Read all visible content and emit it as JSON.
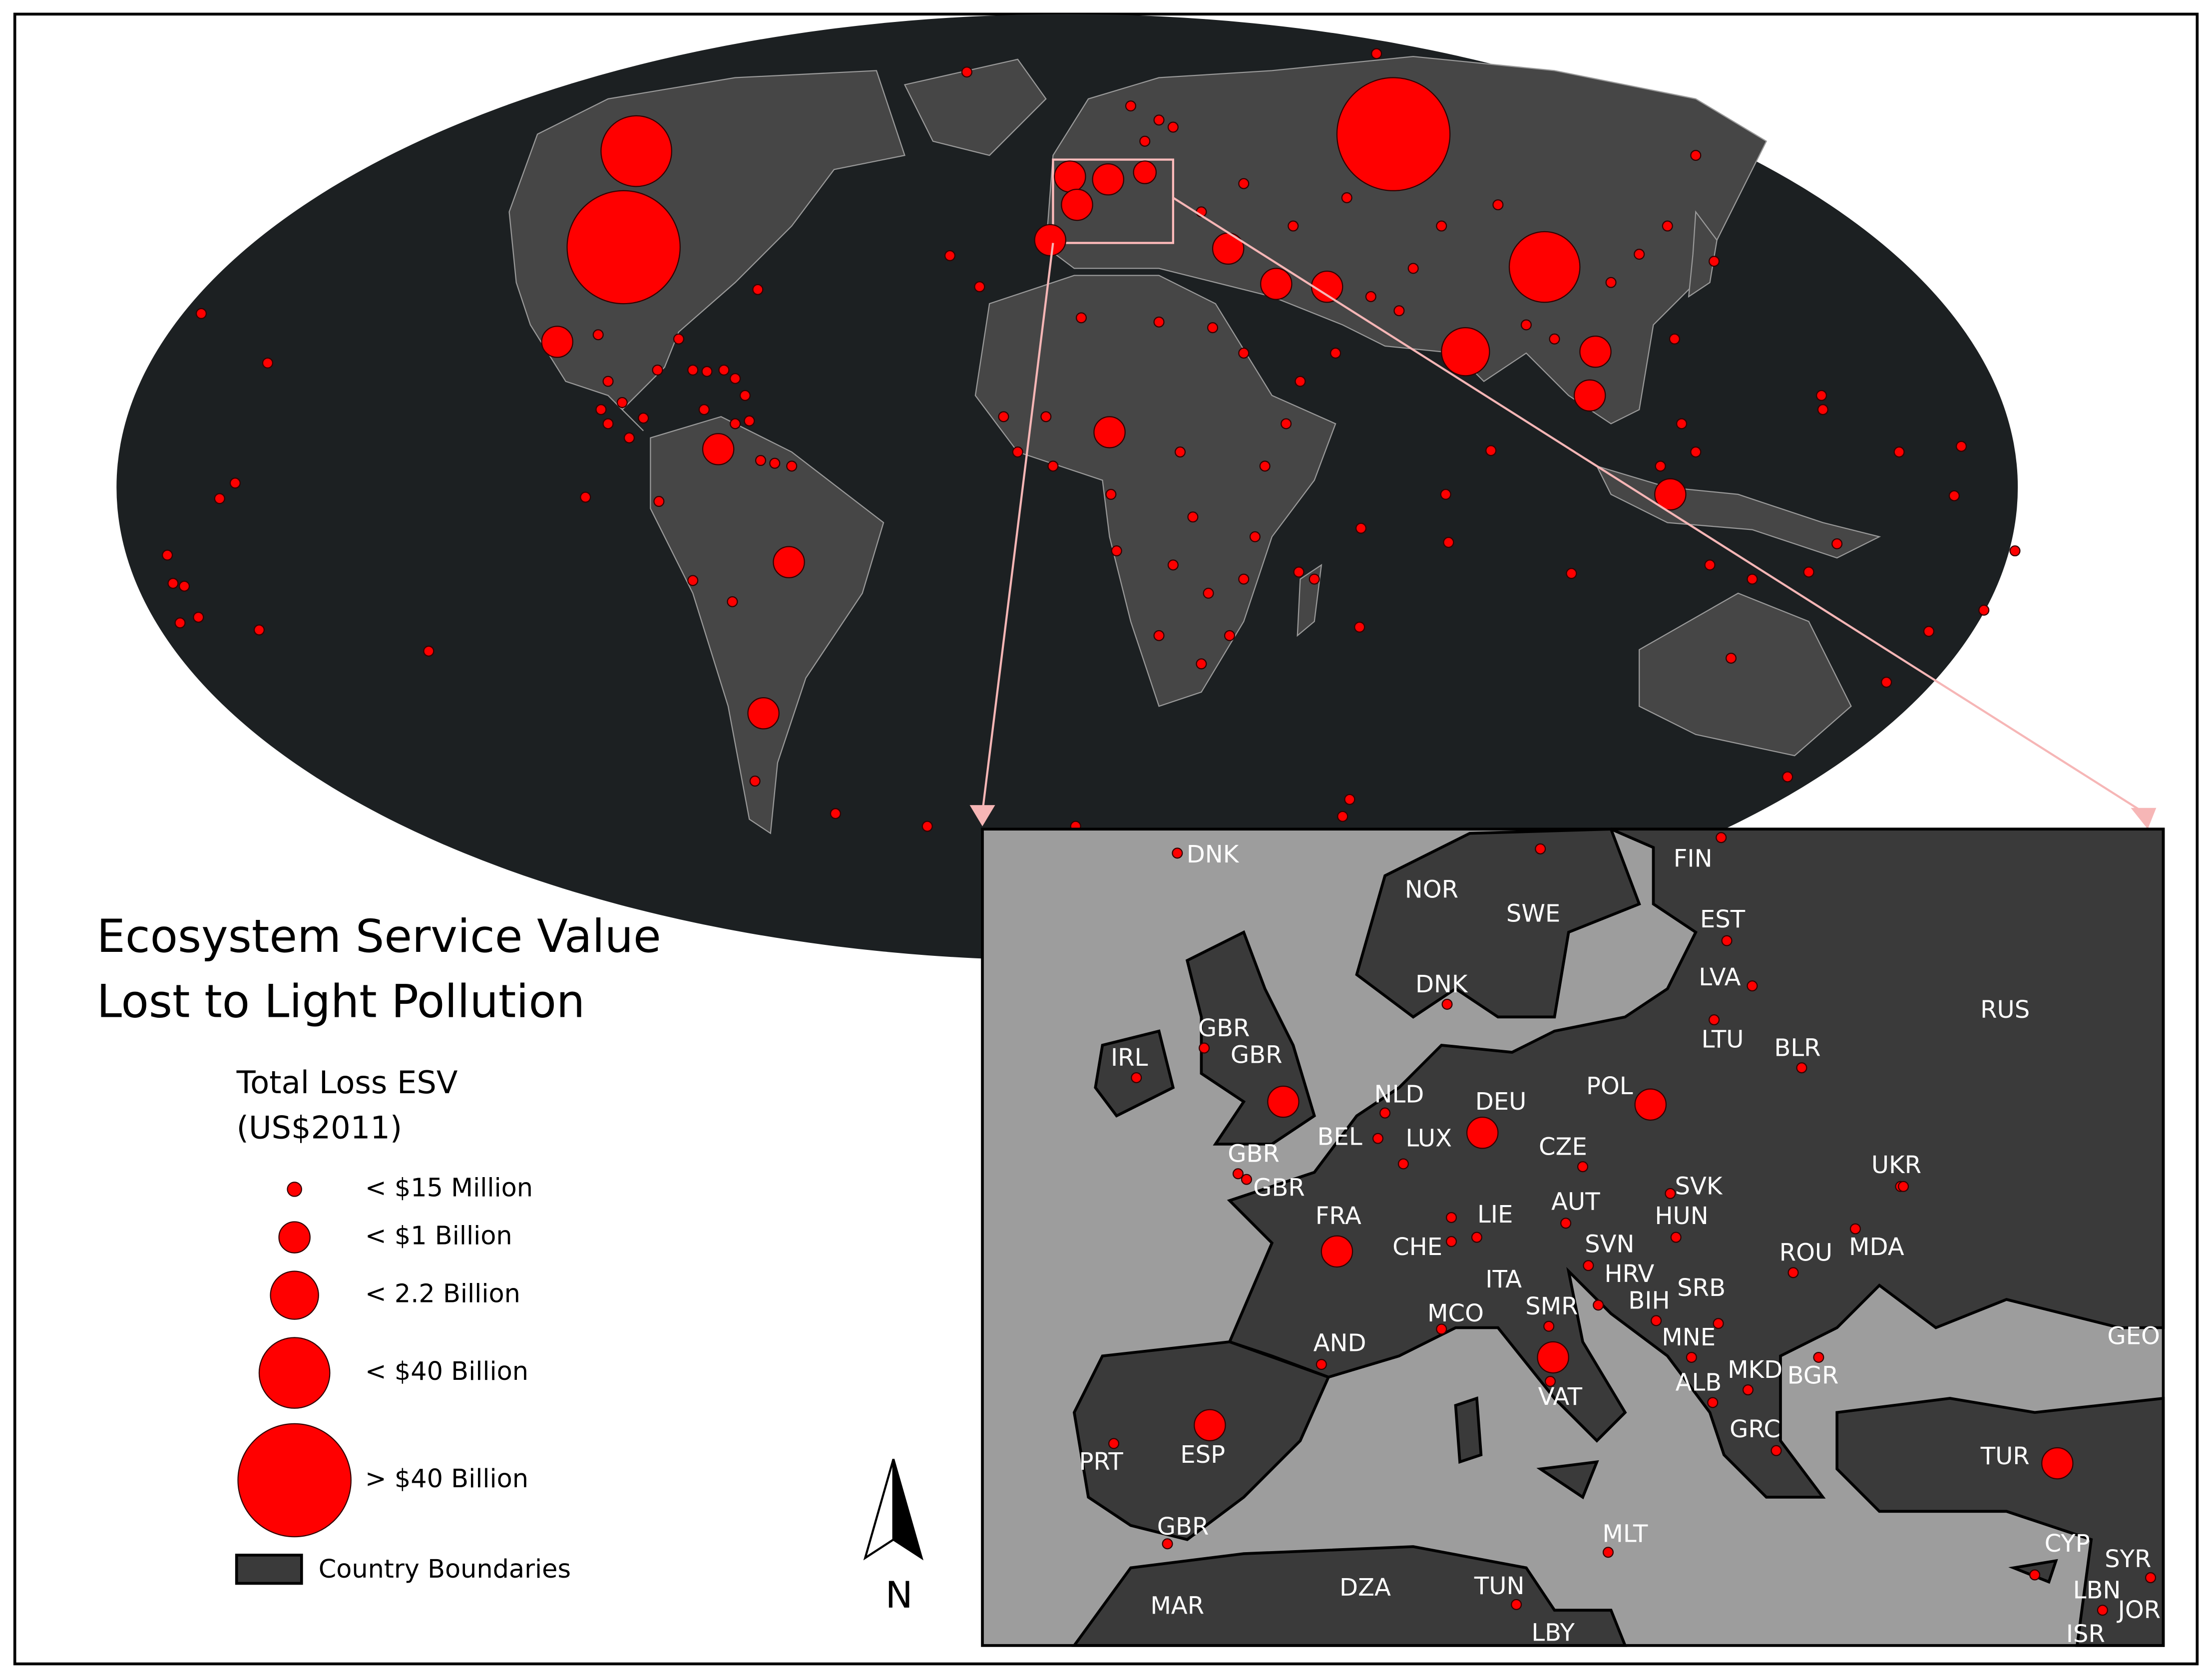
{
  "title_lines": [
    "Ecosystem Service Value",
    "Lost to Light Pollution"
  ],
  "legend": {
    "title": "Total Loss ESV",
    "subtitle": "(US$2011)",
    "size_classes": [
      "< $15 Million",
      "< $1 Billion",
      "< 2.2 Billion",
      "< $40 Billion",
      "> $40 Billion"
    ],
    "boundaries": "Country Boundaries"
  },
  "north_arrow": "N",
  "inset_labels": [
    "DNK",
    "NOR",
    "SWE",
    "FIN",
    "EST",
    "LVA",
    "DNK",
    "LTU",
    "RUS",
    "BLR",
    "GBR",
    "GBR",
    "IRL",
    "NLD",
    "DEU",
    "POL",
    "BEL",
    "LUX",
    "CZE",
    "UKR",
    "GBR",
    "GBR",
    "SVK",
    "AUT",
    "HUN",
    "FRA",
    "LIE",
    "CHE",
    "SVN",
    "MDA",
    "ROU",
    "HRV",
    "ITA",
    "SRB",
    "BIH",
    "SMR",
    "MCO",
    "MNE",
    "GEO",
    "AND",
    "MKD",
    "BGR",
    "ALB",
    "VAT",
    "GRC",
    "ESP",
    "TUR",
    "PRT",
    "GBR",
    "MLT",
    "CYP",
    "SYR",
    "DZA",
    "TUN",
    "MAR",
    "LBN",
    "JOR",
    "LBY",
    "ISR"
  ]
}
